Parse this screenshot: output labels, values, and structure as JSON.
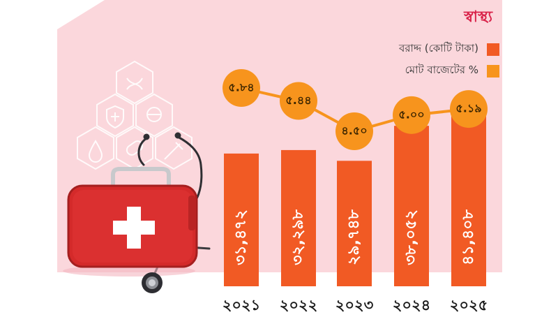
{
  "topic_label": "স্বাস্থ্য",
  "colors": {
    "panel_bg": "#fbd7dc",
    "bar": "#f15a24",
    "dot": "#f7941d",
    "line": "#f7941d",
    "label_text": "#ffffff",
    "dot_text": "#3a2400",
    "year_text": "#1a1a1a",
    "topic_text": "#d9234a"
  },
  "legend": [
    {
      "label": "বরাদ্দ (কোটি টাকা)",
      "color": "#f15a24"
    },
    {
      "label": "মোট বাজেটের %",
      "color": "#f7941d"
    }
  ],
  "chart_data": {
    "type": "bar",
    "categories": [
      "২০২১",
      "২০২২",
      "২০২৩",
      "২০২৪",
      "২০২৫"
    ],
    "series": [
      {
        "name": "বরাদ্দ (কোটি টাকা)",
        "type": "bar",
        "values": [
          31472,
          32298,
          29748,
          38052,
          41408
        ],
        "labels": [
          "৩১,৪৭২",
          "৩২,২৯৮",
          "২৯,৭৪৮",
          "৩৮,০৫২",
          "৪১,৪০৮"
        ]
      },
      {
        "name": "মোট বাজেটের %",
        "type": "line",
        "values": [
          5.84,
          5.44,
          4.5,
          5.0,
          5.19
        ],
        "labels": [
          "৫.৮৪",
          "৫.৪৪",
          "৪.৫০",
          "৫.০০",
          "৫.১৯"
        ]
      }
    ]
  }
}
